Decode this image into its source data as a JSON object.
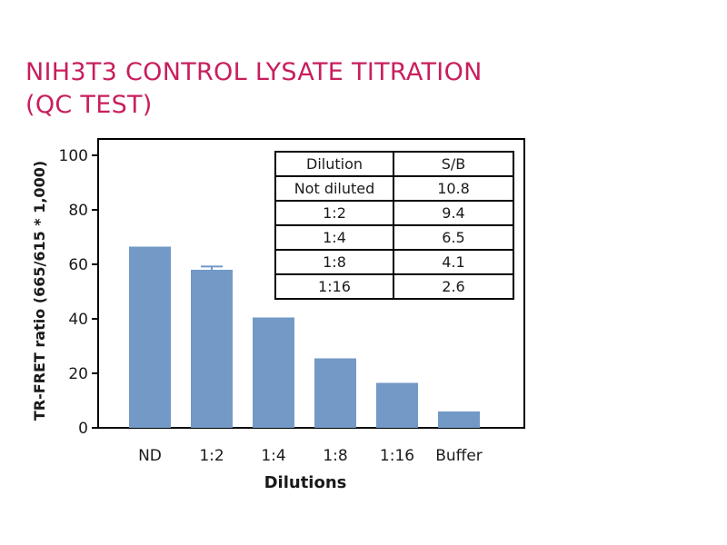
{
  "chart_data": {
    "type": "bar",
    "title_lines": [
      "NIH3T3 CONTROL LYSATE TITRATION",
      "(QC TEST)"
    ],
    "categories": [
      "ND",
      "1:2",
      "1:4",
      "1:8",
      "1:16",
      "Buffer"
    ],
    "values": [
      66.5,
      58,
      40.5,
      25.5,
      16.5,
      6
    ],
    "errors": [
      0,
      1.2,
      0,
      0,
      0,
      0
    ],
    "xlabel": "Dilutions",
    "ylabel": "TR-FRET ratio (665/615 * 1,000)",
    "ylim": [
      0,
      100
    ],
    "yticks": [
      0,
      20,
      40,
      60,
      80,
      100
    ],
    "bar_color": "#7399c6",
    "title_color": "#c81e5e",
    "grid": false,
    "table": {
      "headers": [
        "Dilution",
        "S/B"
      ],
      "rows": [
        [
          "Not diluted",
          "10.8"
        ],
        [
          "1:2",
          "9.4"
        ],
        [
          "1:4",
          "6.5"
        ],
        [
          "1:8",
          "4.1"
        ],
        [
          "1:16",
          "2.6"
        ]
      ]
    }
  }
}
